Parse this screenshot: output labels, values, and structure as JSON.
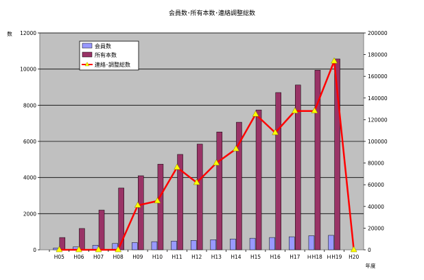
{
  "chart_data": {
    "type": "bar",
    "title": "会員数･所有本数･連絡調整総数",
    "ylabel": "数",
    "xlabel": "年度",
    "categories": [
      "H05",
      "H06",
      "H07",
      "H08",
      "H09",
      "H10",
      "H11",
      "H12",
      "H13",
      "H14",
      "H15",
      "H16",
      "H17",
      "ＨH18",
      "ＨH19",
      "H20"
    ],
    "ylim": [
      0,
      12000
    ],
    "y2lim": [
      0,
      200000
    ],
    "y_ticks": [
      "0",
      "2000",
      "4000",
      "6000",
      "8000",
      "10000",
      "12000"
    ],
    "y2_ticks": [
      "0",
      "20000",
      "40000",
      "60000",
      "80000",
      "100000",
      "120000",
      "140000",
      "160000",
      "180000",
      "200000"
    ],
    "grid": true,
    "legend_position": "top-left",
    "series": [
      {
        "name": "会員数",
        "kind": "bar",
        "axis": "left",
        "color": "#9999ff",
        "values": [
          100,
          160,
          250,
          350,
          400,
          450,
          480,
          520,
          560,
          600,
          640,
          680,
          720,
          780,
          800,
          0
        ]
      },
      {
        "name": "所有本数",
        "kind": "bar",
        "axis": "left",
        "color": "#993366",
        "values": [
          680,
          1180,
          2200,
          3420,
          4100,
          4740,
          5280,
          5850,
          6520,
          7060,
          7740,
          8700,
          9120,
          9940,
          10560,
          0
        ]
      },
      {
        "name": "連絡･調整総数",
        "kind": "line",
        "axis": "right",
        "color": "#ff0000",
        "marker_color": "#ffff00",
        "values": [
          0,
          0,
          0,
          0,
          41000,
          45000,
          76000,
          62000,
          80000,
          93000,
          125000,
          108000,
          128000,
          128000,
          174000,
          0
        ]
      }
    ]
  }
}
